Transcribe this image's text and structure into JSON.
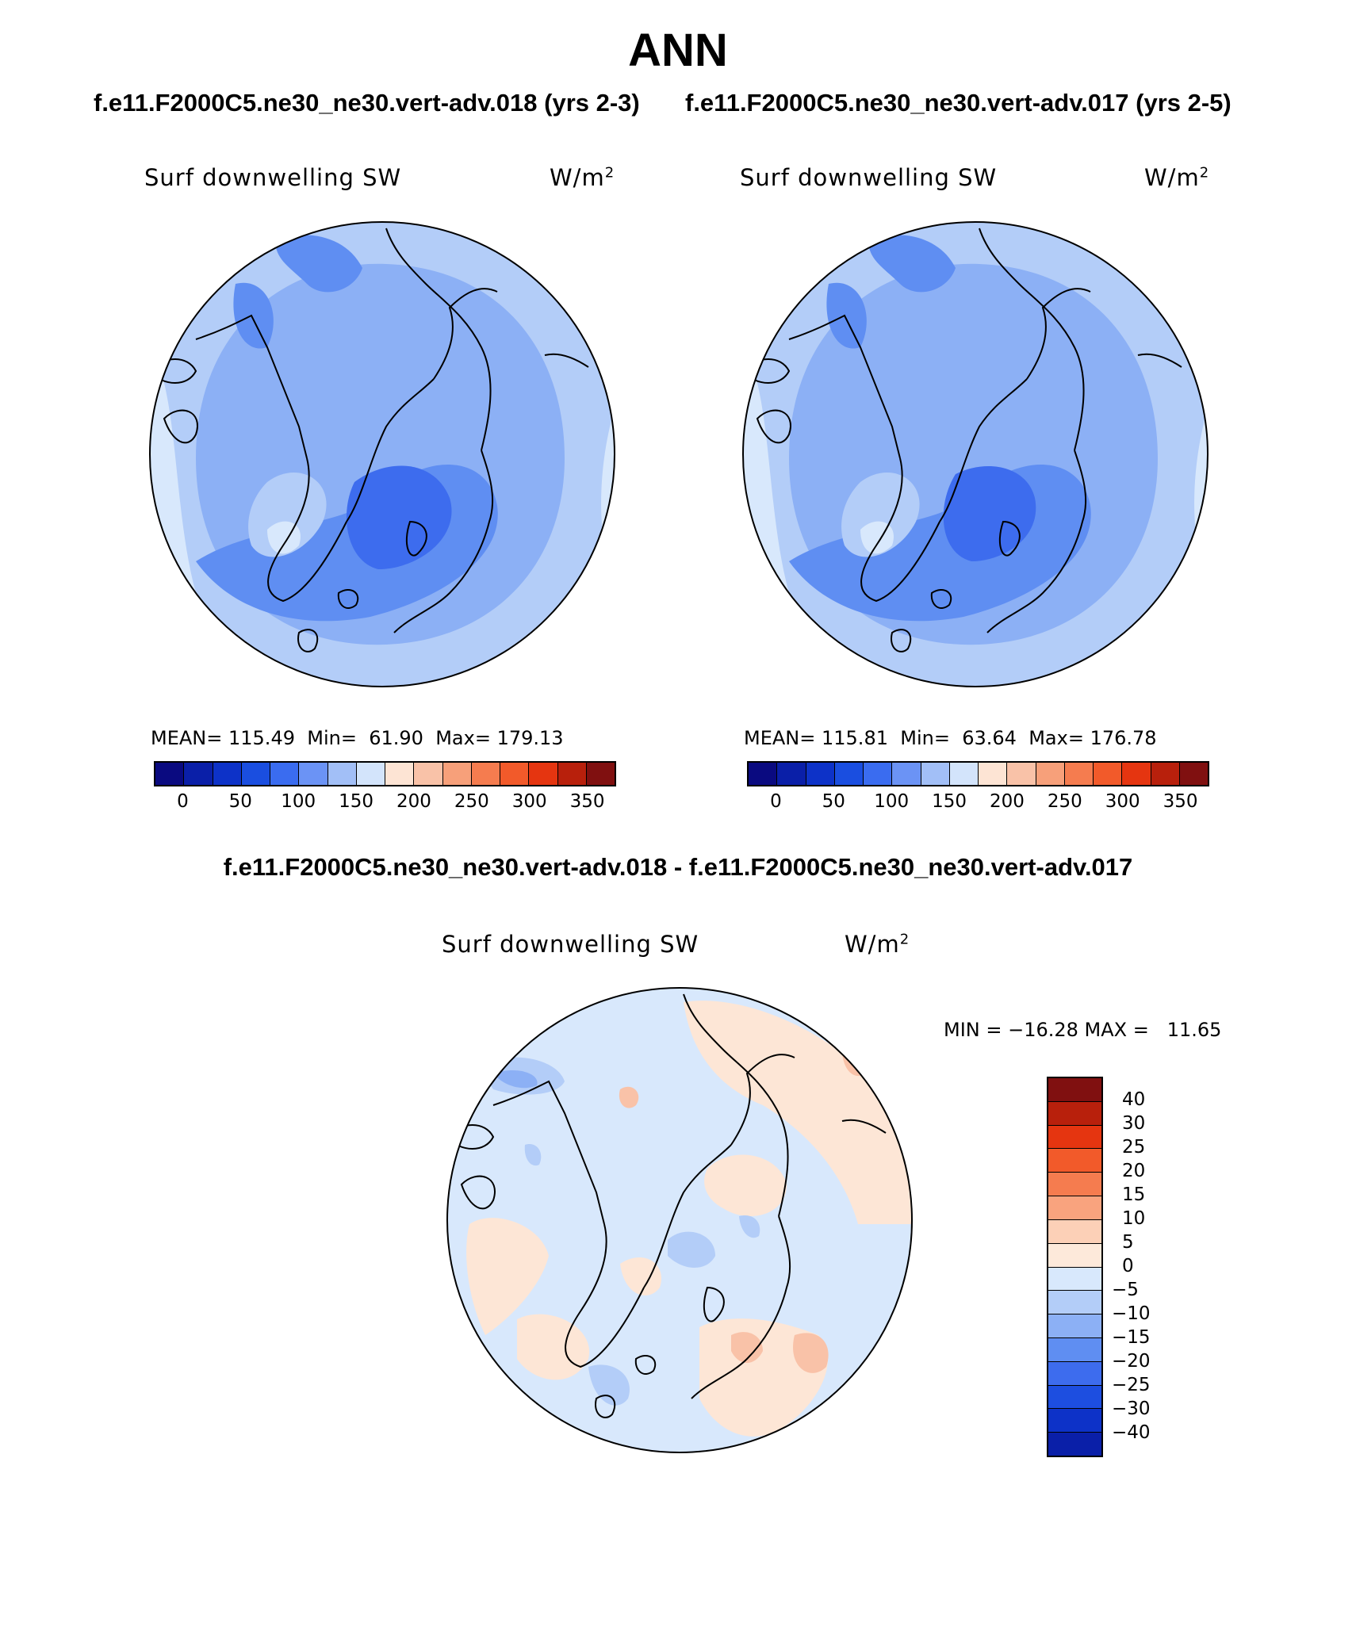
{
  "title": "ANN",
  "case_titles": [
    "f.e11.F2000C5.ne30_ne30.vert-adv.018 (yrs 2-3)",
    "f.e11.F2000C5.ne30_ne30.vert-adv.017 (yrs 2-5)"
  ],
  "diff_title": "f.e11.F2000C5.ne30_ne30.vert-adv.018 - f.e11.F2000C5.ne30_ne30.vert-adv.017",
  "variable": "Surf downwelling SW",
  "units_base": "W/m",
  "units_exp": "2",
  "panels": [
    {
      "mean_label": "MEAN=",
      "mean": "115.49",
      "min_label": "Min=",
      "min": "61.90",
      "max_label": "Max=",
      "max": "179.13"
    },
    {
      "mean_label": "MEAN=",
      "mean": "115.81",
      "min_label": "Min=",
      "min": "63.64",
      "max_label": "Max=",
      "max": "176.78"
    }
  ],
  "diff_stats": "MIN = −16.28 MAX =   11.65",
  "abs_colorbar": {
    "colors": [
      "#0a0a80",
      "#0a1fa8",
      "#0d32c8",
      "#1a4ee0",
      "#3a6cf0",
      "#6b93f5",
      "#a2bff7",
      "#d3e4fb",
      "#fde4d4",
      "#f9c2a8",
      "#f7a07a",
      "#f57c4f",
      "#f25a2a",
      "#e53510",
      "#b8200c",
      "#801010"
    ],
    "ticks": [
      "0",
      "50",
      "100",
      "150",
      "200",
      "250",
      "300",
      "350"
    ]
  },
  "diff_colorbar": {
    "colors": [
      "#801010",
      "#b8200c",
      "#e53510",
      "#f25a2a",
      "#f57c4f",
      "#f9a37e",
      "#fcd0b7",
      "#fde9da",
      "#d8e8fc",
      "#b3cdf8",
      "#8cb0f5",
      "#5f8ef2",
      "#3d6cee",
      "#1d4ee0",
      "#0d32c8",
      "#0a1fa8"
    ],
    "ticks": [
      "40",
      "30",
      "25",
      "20",
      "15",
      "10",
      "5",
      "0",
      "−5",
      "−10",
      "−15",
      "−20",
      "−25",
      "−30",
      "−40"
    ]
  },
  "map_colors": {
    "abs_base": "#8cb0f5",
    "abs_light": "#b3cdf8",
    "abs_lighter": "#d8e8fc",
    "abs_dark": "#5f8ef2",
    "abs_darker": "#3d6cee",
    "abs_orange": "#f9c2a8",
    "diff_base": "#d8e8fc",
    "diff_pos": "#fde6d6",
    "diff_pos2": "#f9c2a8",
    "diff_neg": "#b3cdf8",
    "diff_neg2": "#8cb0f5"
  }
}
